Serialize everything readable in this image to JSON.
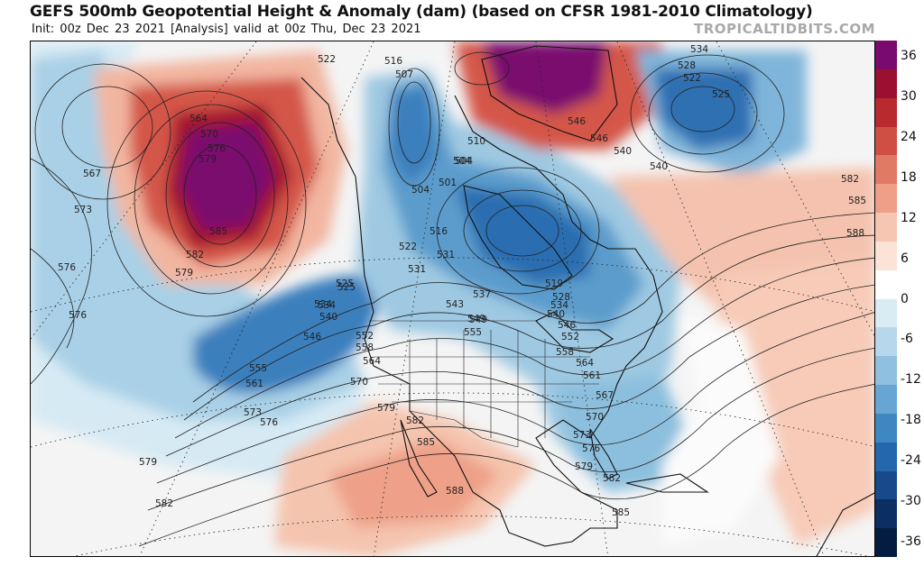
{
  "header": {
    "title": "GEFS 500mb Geopotential Height & Anomaly (dam) (based on CFSR 1981-2010 Climatology)",
    "subtitle": "Init: 00z Dec 23 2021   [Analysis]   valid at 00z Thu, Dec 23 2021",
    "brand": "TROPICALTIDBITS.COM"
  },
  "colorbar": {
    "labels": [
      "36",
      "30",
      "24",
      "18",
      "12",
      "6",
      "0",
      "-6",
      "-12",
      "-18",
      "-24",
      "-30",
      "-36"
    ],
    "colors": [
      "#7a0a6e",
      "#9b1030",
      "#b82a2e",
      "#cf4f45",
      "#e07a65",
      "#ee9f88",
      "#f7c6b2",
      "#fbe3d8",
      "#ffffff",
      "#d9ecf4",
      "#b7d8ea",
      "#8fc0df",
      "#67a6d2",
      "#3f87c0",
      "#2467ac",
      "#174a8a",
      "#0c2f63",
      "#041c40"
    ]
  },
  "contour_labels": [
    "522",
    "516",
    "507",
    "534",
    "528",
    "522",
    "525",
    "525",
    "531",
    "504",
    "501",
    "510",
    "504",
    "567",
    "573",
    "564",
    "570",
    "576",
    "579",
    "585",
    "582",
    "579",
    "504",
    "516",
    "522",
    "546",
    "540",
    "546",
    "549",
    "534",
    "540",
    "582",
    "585",
    "588",
    "576",
    "576",
    "531",
    "525",
    "534",
    "540",
    "546",
    "552",
    "558",
    "564",
    "555",
    "561",
    "570",
    "573",
    "576",
    "579",
    "582",
    "537",
    "543",
    "549",
    "555",
    "519",
    "528",
    "534",
    "540",
    "546",
    "552",
    "558",
    "564",
    "561",
    "567",
    "570",
    "573",
    "576",
    "579",
    "582",
    "585",
    "588",
    "579",
    "582",
    "585"
  ]
}
